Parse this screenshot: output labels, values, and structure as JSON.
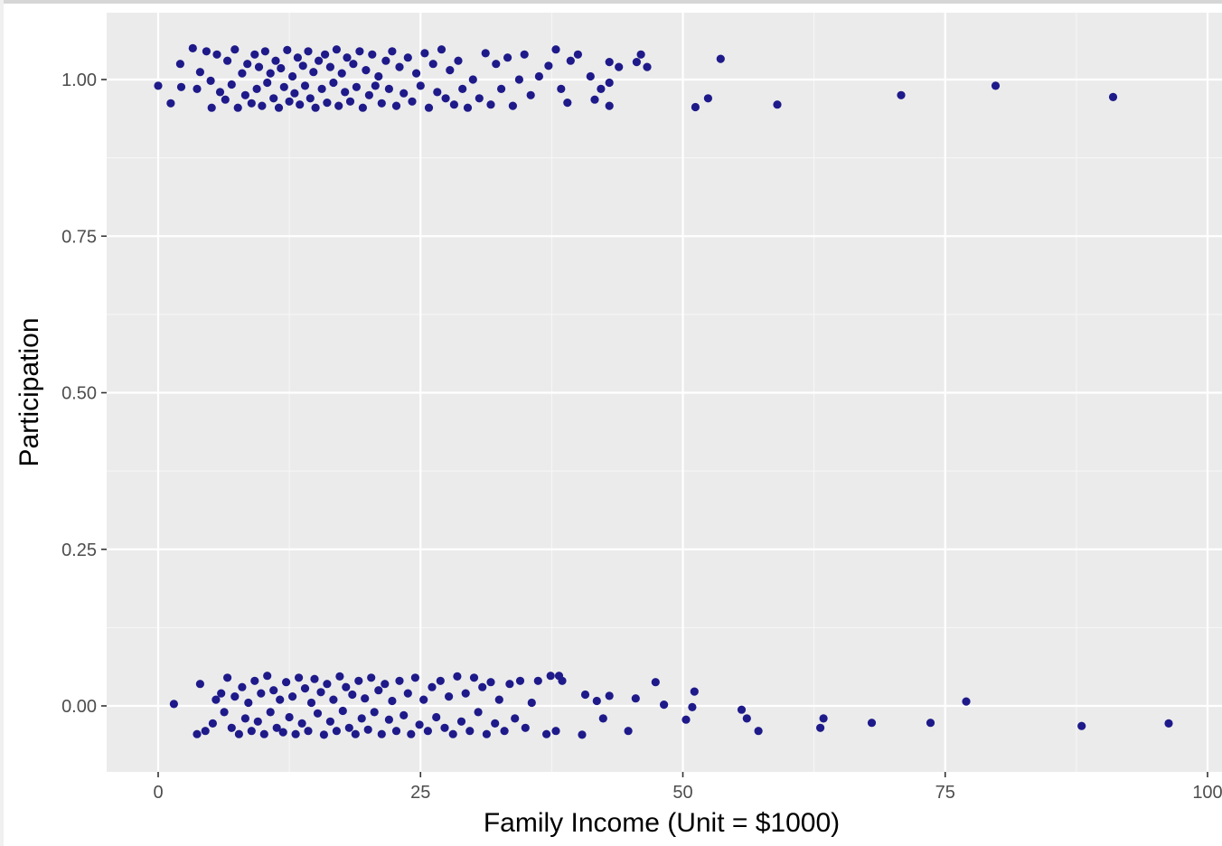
{
  "chart_data": {
    "type": "scatter",
    "xlabel": "Family Income (Unit = $1000)",
    "ylabel": "Participation",
    "xlim": [
      -10,
      100
    ],
    "ylim": [
      -0.105,
      1.105
    ],
    "x_ticks": [
      0,
      25,
      50,
      75,
      100
    ],
    "x_tick_labels": [
      "0",
      "25",
      "50",
      "75",
      "100"
    ],
    "y_ticks": [
      0,
      0.25,
      0.5,
      0.75,
      1
    ],
    "y_tick_labels": [
      "0.00",
      "0.25",
      "0.50",
      "0.75",
      "1.00"
    ],
    "grid": true,
    "point_color": "#1e1a8a",
    "panel_color": "#ebebeb",
    "points": [
      {
        "x": 0.0,
        "y": 0.99
      },
      {
        "x": 1.2,
        "y": 0.962
      },
      {
        "x": 2.1,
        "y": 1.025
      },
      {
        "x": 2.2,
        "y": 0.988
      },
      {
        "x": 3.3,
        "y": 1.05
      },
      {
        "x": 3.7,
        "y": 0.985
      },
      {
        "x": 4.0,
        "y": 1.012
      },
      {
        "x": 4.6,
        "y": 1.045
      },
      {
        "x": 5.0,
        "y": 0.998
      },
      {
        "x": 5.1,
        "y": 0.955
      },
      {
        "x": 5.6,
        "y": 1.04
      },
      {
        "x": 5.9,
        "y": 0.98
      },
      {
        "x": 6.4,
        "y": 0.968
      },
      {
        "x": 6.6,
        "y": 1.03
      },
      {
        "x": 7.0,
        "y": 0.992
      },
      {
        "x": 7.3,
        "y": 1.048
      },
      {
        "x": 7.6,
        "y": 0.955
      },
      {
        "x": 8.0,
        "y": 1.01
      },
      {
        "x": 8.3,
        "y": 0.975
      },
      {
        "x": 8.5,
        "y": 1.025
      },
      {
        "x": 8.9,
        "y": 0.962
      },
      {
        "x": 9.2,
        "y": 1.04
      },
      {
        "x": 9.4,
        "y": 0.985
      },
      {
        "x": 9.6,
        "y": 1.02
      },
      {
        "x": 9.9,
        "y": 0.958
      },
      {
        "x": 10.2,
        "y": 1.045
      },
      {
        "x": 10.4,
        "y": 0.995
      },
      {
        "x": 10.7,
        "y": 1.01
      },
      {
        "x": 11.0,
        "y": 0.97
      },
      {
        "x": 11.2,
        "y": 1.03
      },
      {
        "x": 11.5,
        "y": 0.955
      },
      {
        "x": 11.7,
        "y": 1.018
      },
      {
        "x": 12.0,
        "y": 0.988
      },
      {
        "x": 12.3,
        "y": 1.047
      },
      {
        "x": 12.5,
        "y": 0.965
      },
      {
        "x": 12.8,
        "y": 1.005
      },
      {
        "x": 13.0,
        "y": 0.978
      },
      {
        "x": 13.3,
        "y": 1.035
      },
      {
        "x": 13.5,
        "y": 0.96
      },
      {
        "x": 13.8,
        "y": 1.022
      },
      {
        "x": 14.0,
        "y": 0.99
      },
      {
        "x": 14.3,
        "y": 1.045
      },
      {
        "x": 14.5,
        "y": 0.97
      },
      {
        "x": 14.8,
        "y": 1.012
      },
      {
        "x": 15.0,
        "y": 0.955
      },
      {
        "x": 15.3,
        "y": 1.03
      },
      {
        "x": 15.6,
        "y": 0.985
      },
      {
        "x": 15.9,
        "y": 1.04
      },
      {
        "x": 16.1,
        "y": 0.963
      },
      {
        "x": 16.4,
        "y": 1.02
      },
      {
        "x": 16.7,
        "y": 0.995
      },
      {
        "x": 17.0,
        "y": 1.048
      },
      {
        "x": 17.2,
        "y": 0.958
      },
      {
        "x": 17.5,
        "y": 1.01
      },
      {
        "x": 17.8,
        "y": 0.98
      },
      {
        "x": 18.0,
        "y": 1.035
      },
      {
        "x": 18.3,
        "y": 0.965
      },
      {
        "x": 18.6,
        "y": 1.025
      },
      {
        "x": 18.9,
        "y": 0.988
      },
      {
        "x": 19.2,
        "y": 1.045
      },
      {
        "x": 19.5,
        "y": 0.955
      },
      {
        "x": 19.8,
        "y": 1.015
      },
      {
        "x": 20.1,
        "y": 0.975
      },
      {
        "x": 20.4,
        "y": 1.04
      },
      {
        "x": 20.7,
        "y": 0.99
      },
      {
        "x": 21.0,
        "y": 1.005
      },
      {
        "x": 21.3,
        "y": 0.962
      },
      {
        "x": 21.7,
        "y": 1.03
      },
      {
        "x": 22.0,
        "y": 0.985
      },
      {
        "x": 22.3,
        "y": 1.045
      },
      {
        "x": 22.7,
        "y": 0.958
      },
      {
        "x": 23.0,
        "y": 1.02
      },
      {
        "x": 23.4,
        "y": 0.978
      },
      {
        "x": 23.8,
        "y": 1.035
      },
      {
        "x": 24.2,
        "y": 0.965
      },
      {
        "x": 24.6,
        "y": 1.01
      },
      {
        "x": 25.0,
        "y": 0.99
      },
      {
        "x": 25.4,
        "y": 1.042
      },
      {
        "x": 25.8,
        "y": 0.955
      },
      {
        "x": 26.2,
        "y": 1.025
      },
      {
        "x": 26.6,
        "y": 0.98
      },
      {
        "x": 27.0,
        "y": 1.048
      },
      {
        "x": 27.4,
        "y": 0.97
      },
      {
        "x": 27.8,
        "y": 1.015
      },
      {
        "x": 28.2,
        "y": 0.96
      },
      {
        "x": 28.6,
        "y": 1.03
      },
      {
        "x": 29.0,
        "y": 0.985
      },
      {
        "x": 29.5,
        "y": 0.955
      },
      {
        "x": 30.0,
        "y": 1.0
      },
      {
        "x": 30.6,
        "y": 0.97
      },
      {
        "x": 31.2,
        "y": 1.042
      },
      {
        "x": 31.7,
        "y": 0.96
      },
      {
        "x": 32.2,
        "y": 1.025
      },
      {
        "x": 32.7,
        "y": 0.985
      },
      {
        "x": 33.3,
        "y": 1.035
      },
      {
        "x": 33.8,
        "y": 0.958
      },
      {
        "x": 34.4,
        "y": 1.0
      },
      {
        "x": 34.9,
        "y": 1.04
      },
      {
        "x": 35.5,
        "y": 0.975
      },
      {
        "x": 36.3,
        "y": 1.005
      },
      {
        "x": 37.2,
        "y": 1.022
      },
      {
        "x": 37.9,
        "y": 1.048
      },
      {
        "x": 38.4,
        "y": 0.985
      },
      {
        "x": 39.0,
        "y": 0.963
      },
      {
        "x": 39.3,
        "y": 1.03
      },
      {
        "x": 40.0,
        "y": 1.04
      },
      {
        "x": 41.2,
        "y": 1.005
      },
      {
        "x": 41.6,
        "y": 0.968
      },
      {
        "x": 42.2,
        "y": 0.985
      },
      {
        "x": 43.0,
        "y": 1.028
      },
      {
        "x": 43.0,
        "y": 0.958
      },
      {
        "x": 43.0,
        "y": 0.995
      },
      {
        "x": 43.9,
        "y": 1.02
      },
      {
        "x": 45.6,
        "y": 1.028
      },
      {
        "x": 46.0,
        "y": 1.04
      },
      {
        "x": 46.6,
        "y": 1.02
      },
      {
        "x": 51.2,
        "y": 0.956
      },
      {
        "x": 52.4,
        "y": 0.97
      },
      {
        "x": 53.6,
        "y": 1.033
      },
      {
        "x": 59.0,
        "y": 0.96
      },
      {
        "x": 70.8,
        "y": 0.975
      },
      {
        "x": 79.8,
        "y": 0.99
      },
      {
        "x": 91.0,
        "y": 0.972
      },
      {
        "x": 1.5,
        "y": 0.003
      },
      {
        "x": 3.7,
        "y": -0.045
      },
      {
        "x": 4.0,
        "y": 0.035
      },
      {
        "x": 4.5,
        "y": -0.04
      },
      {
        "x": 5.2,
        "y": -0.028
      },
      {
        "x": 5.5,
        "y": 0.01
      },
      {
        "x": 6.0,
        "y": 0.02
      },
      {
        "x": 6.3,
        "y": -0.01
      },
      {
        "x": 6.6,
        "y": 0.045
      },
      {
        "x": 7.0,
        "y": -0.035
      },
      {
        "x": 7.3,
        "y": 0.015
      },
      {
        "x": 7.7,
        "y": -0.045
      },
      {
        "x": 8.0,
        "y": 0.03
      },
      {
        "x": 8.3,
        "y": -0.02
      },
      {
        "x": 8.6,
        "y": 0.005
      },
      {
        "x": 8.9,
        "y": -0.04
      },
      {
        "x": 9.2,
        "y": 0.04
      },
      {
        "x": 9.5,
        "y": -0.025
      },
      {
        "x": 9.8,
        "y": 0.02
      },
      {
        "x": 10.1,
        "y": -0.045
      },
      {
        "x": 10.4,
        "y": 0.048
      },
      {
        "x": 10.7,
        "y": -0.01
      },
      {
        "x": 11.0,
        "y": 0.025
      },
      {
        "x": 11.3,
        "y": -0.035
      },
      {
        "x": 11.6,
        "y": 0.01
      },
      {
        "x": 11.9,
        "y": -0.042
      },
      {
        "x": 12.2,
        "y": 0.038
      },
      {
        "x": 12.5,
        "y": -0.018
      },
      {
        "x": 12.8,
        "y": 0.015
      },
      {
        "x": 13.1,
        "y": -0.045
      },
      {
        "x": 13.4,
        "y": 0.045
      },
      {
        "x": 13.7,
        "y": -0.028
      },
      {
        "x": 14.0,
        "y": 0.028
      },
      {
        "x": 14.3,
        "y": -0.04
      },
      {
        "x": 14.6,
        "y": 0.005
      },
      {
        "x": 14.9,
        "y": 0.043
      },
      {
        "x": 15.2,
        "y": -0.012
      },
      {
        "x": 15.5,
        "y": 0.022
      },
      {
        "x": 15.8,
        "y": -0.046
      },
      {
        "x": 16.1,
        "y": 0.035
      },
      {
        "x": 16.4,
        "y": -0.025
      },
      {
        "x": 16.7,
        "y": 0.01
      },
      {
        "x": 17.0,
        "y": -0.04
      },
      {
        "x": 17.3,
        "y": 0.047
      },
      {
        "x": 17.6,
        "y": -0.008
      },
      {
        "x": 17.9,
        "y": 0.03
      },
      {
        "x": 18.2,
        "y": -0.035
      },
      {
        "x": 18.5,
        "y": 0.018
      },
      {
        "x": 18.8,
        "y": -0.045
      },
      {
        "x": 19.1,
        "y": 0.04
      },
      {
        "x": 19.4,
        "y": -0.02
      },
      {
        "x": 19.7,
        "y": 0.012
      },
      {
        "x": 20.0,
        "y": -0.038
      },
      {
        "x": 20.3,
        "y": 0.045
      },
      {
        "x": 20.6,
        "y": -0.01
      },
      {
        "x": 21.0,
        "y": 0.025
      },
      {
        "x": 21.3,
        "y": -0.045
      },
      {
        "x": 21.6,
        "y": 0.035
      },
      {
        "x": 22.0,
        "y": -0.022
      },
      {
        "x": 22.3,
        "y": 0.008
      },
      {
        "x": 22.7,
        "y": -0.04
      },
      {
        "x": 23.0,
        "y": 0.04
      },
      {
        "x": 23.4,
        "y": -0.015
      },
      {
        "x": 23.8,
        "y": 0.02
      },
      {
        "x": 24.1,
        "y": -0.045
      },
      {
        "x": 24.5,
        "y": 0.045
      },
      {
        "x": 24.9,
        "y": -0.03
      },
      {
        "x": 25.3,
        "y": 0.01
      },
      {
        "x": 25.7,
        "y": -0.04
      },
      {
        "x": 26.1,
        "y": 0.03
      },
      {
        "x": 26.5,
        "y": -0.018
      },
      {
        "x": 26.9,
        "y": 0.04
      },
      {
        "x": 27.3,
        "y": -0.035
      },
      {
        "x": 27.7,
        "y": 0.015
      },
      {
        "x": 28.1,
        "y": -0.045
      },
      {
        "x": 28.5,
        "y": 0.047
      },
      {
        "x": 28.9,
        "y": -0.025
      },
      {
        "x": 29.3,
        "y": 0.02
      },
      {
        "x": 29.7,
        "y": -0.04
      },
      {
        "x": 30.1,
        "y": 0.045
      },
      {
        "x": 30.5,
        "y": -0.01
      },
      {
        "x": 30.9,
        "y": 0.03
      },
      {
        "x": 31.3,
        "y": -0.045
      },
      {
        "x": 31.7,
        "y": 0.038
      },
      {
        "x": 32.1,
        "y": -0.028
      },
      {
        "x": 32.5,
        "y": 0.01
      },
      {
        "x": 33.0,
        "y": -0.04
      },
      {
        "x": 33.5,
        "y": 0.035
      },
      {
        "x": 34.0,
        "y": -0.02
      },
      {
        "x": 34.5,
        "y": 0.04
      },
      {
        "x": 35.0,
        "y": -0.035
      },
      {
        "x": 35.6,
        "y": 0.005
      },
      {
        "x": 36.2,
        "y": 0.04
      },
      {
        "x": 37.0,
        "y": -0.045
      },
      {
        "x": 37.4,
        "y": 0.048
      },
      {
        "x": 37.9,
        "y": -0.04
      },
      {
        "x": 38.2,
        "y": 0.048
      },
      {
        "x": 38.5,
        "y": 0.04
      },
      {
        "x": 40.4,
        "y": -0.046
      },
      {
        "x": 40.7,
        "y": 0.018
      },
      {
        "x": 41.8,
        "y": 0.008
      },
      {
        "x": 42.4,
        "y": -0.02
      },
      {
        "x": 43.0,
        "y": 0.016
      },
      {
        "x": 44.8,
        "y": -0.04
      },
      {
        "x": 45.5,
        "y": 0.012
      },
      {
        "x": 47.4,
        "y": 0.038
      },
      {
        "x": 48.2,
        "y": 0.002
      },
      {
        "x": 50.3,
        "y": -0.022
      },
      {
        "x": 50.9,
        "y": -0.002
      },
      {
        "x": 51.1,
        "y": 0.023
      },
      {
        "x": 55.6,
        "y": -0.006
      },
      {
        "x": 56.1,
        "y": -0.02
      },
      {
        "x": 57.2,
        "y": -0.04
      },
      {
        "x": 63.1,
        "y": -0.035
      },
      {
        "x": 63.4,
        "y": -0.02
      },
      {
        "x": 68.0,
        "y": -0.027
      },
      {
        "x": 73.6,
        "y": -0.027
      },
      {
        "x": 77.0,
        "y": 0.007
      },
      {
        "x": 88.0,
        "y": -0.032
      },
      {
        "x": 96.3,
        "y": -0.028
      }
    ]
  }
}
